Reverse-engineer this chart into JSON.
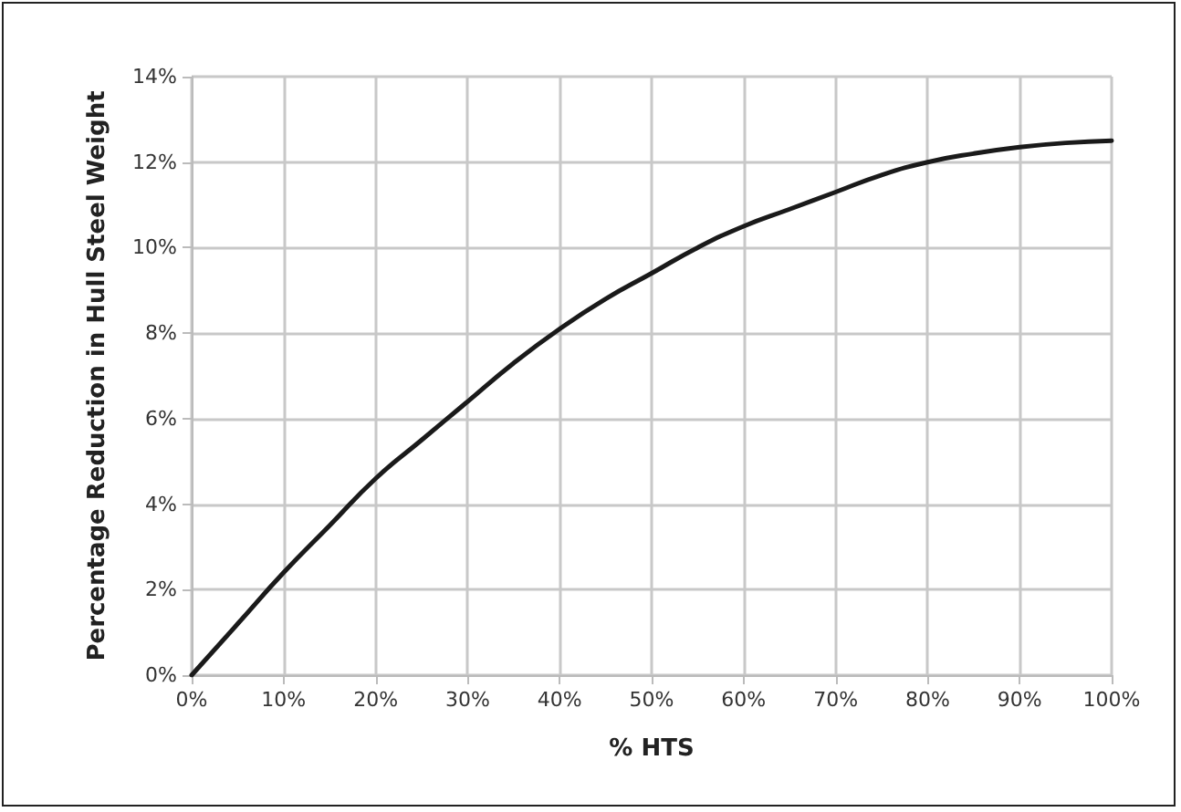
{
  "chart_data": {
    "type": "line",
    "xlabel": "% HTS",
    "ylabel": "Percentage Reduction in Hull Steel Weight",
    "x": [
      0,
      5,
      10,
      15,
      20,
      25,
      30,
      35,
      40,
      45,
      50,
      55,
      60,
      65,
      70,
      75,
      80,
      85,
      90,
      95,
      100
    ],
    "series": [
      {
        "color": "#1a1a1a",
        "values": [
          0,
          1.2,
          2.4,
          3.5,
          4.6,
          5.5,
          6.4,
          7.3,
          8.1,
          8.8,
          9.4,
          10.0,
          10.5,
          10.9,
          11.3,
          11.7,
          12.0,
          12.2,
          12.35,
          12.45,
          12.5
        ]
      }
    ],
    "xlim": [
      0,
      100
    ],
    "xticks": [
      {
        "value": 0,
        "label": "0%"
      },
      {
        "value": 10,
        "label": "10%"
      },
      {
        "value": 20,
        "label": "20%"
      },
      {
        "value": 30,
        "label": "30%"
      },
      {
        "value": 40,
        "label": "40%"
      },
      {
        "value": 50,
        "label": "50%"
      },
      {
        "value": 60,
        "label": "60%"
      },
      {
        "value": 70,
        "label": "70%"
      },
      {
        "value": 80,
        "label": "80%"
      },
      {
        "value": 90,
        "label": "90%"
      },
      {
        "value": 100,
        "label": "100%"
      }
    ],
    "ylim": [
      0,
      14
    ],
    "yticks": [
      {
        "value": 0,
        "label": "0%"
      },
      {
        "value": 2,
        "label": "2%"
      },
      {
        "value": 4,
        "label": "4%"
      },
      {
        "value": 6,
        "label": "6%"
      },
      {
        "value": 8,
        "label": "8%"
      },
      {
        "value": 10,
        "label": "10%"
      },
      {
        "value": 12,
        "label": "12%"
      },
      {
        "value": 14,
        "label": "14%"
      }
    ],
    "grid": true,
    "marker": "none",
    "line_style": "solid"
  }
}
